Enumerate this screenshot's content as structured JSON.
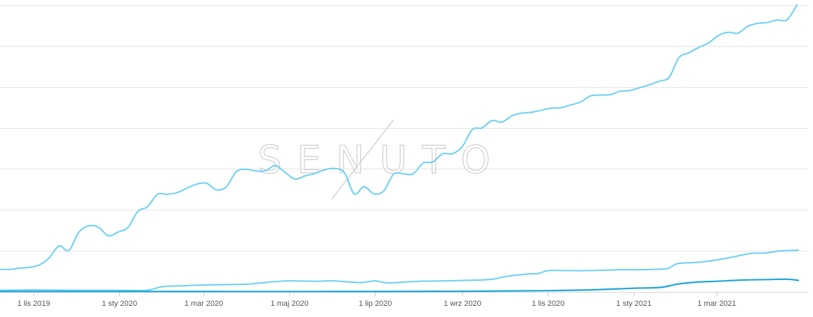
{
  "watermark": "SENUTO",
  "colors": {
    "series_top": "#6ad0f5",
    "series_mid": "#6ad0f5",
    "series_bottom": "#1fa6dc",
    "grid": "#e6e6e6",
    "watermark": "#cfcfcf"
  },
  "chart_data": {
    "type": "line",
    "title": "",
    "xlabel": "",
    "ylabel": "",
    "grid": true,
    "legend": "none",
    "x_ticks": [
      "1 lis 2019",
      "1 sty 2020",
      "1 mar 2020",
      "1 maj 2020",
      "1 lip 2020",
      "1 wrz 2020",
      "1 lis 2020",
      "1 sty 2021",
      "1 mar 2021"
    ],
    "x_tick_dates": [
      "2019-11-01",
      "2020-01-01",
      "2020-03-01",
      "2020-05-01",
      "2020-07-01",
      "2020-09-01",
      "2020-11-01",
      "2021-01-01",
      "2021-03-01"
    ],
    "x_range": [
      "2019-10-08",
      "2021-04-28"
    ],
    "ylim": [
      0,
      7000
    ],
    "y_grid_values": [
      0,
      1000,
      2000,
      3000,
      4000,
      5000,
      6000,
      7000
    ],
    "series": [
      {
        "x": [
          "2019-10-08",
          "2019-10-15",
          "2019-10-22",
          "2019-10-29",
          "2019-11-05",
          "2019-11-12",
          "2019-11-19",
          "2019-11-26",
          "2019-12-03",
          "2019-12-10",
          "2019-12-17",
          "2019-12-24",
          "2019-12-31",
          "2020-01-07",
          "2020-01-14",
          "2020-01-21",
          "2020-01-28",
          "2020-02-04",
          "2020-02-11",
          "2020-02-18",
          "2020-02-25",
          "2020-03-03",
          "2020-03-10",
          "2020-03-17",
          "2020-03-24",
          "2020-03-31",
          "2020-04-07",
          "2020-04-14",
          "2020-04-21",
          "2020-04-28",
          "2020-05-05",
          "2020-05-12",
          "2020-05-19",
          "2020-05-26",
          "2020-06-02",
          "2020-06-09",
          "2020-06-16",
          "2020-06-23",
          "2020-06-30",
          "2020-07-07",
          "2020-07-14",
          "2020-07-21",
          "2020-07-28",
          "2020-08-04",
          "2020-08-11",
          "2020-08-18",
          "2020-08-25",
          "2020-09-01",
          "2020-09-08",
          "2020-09-15",
          "2020-09-22",
          "2020-09-29",
          "2020-10-06",
          "2020-10-13",
          "2020-10-20",
          "2020-10-27",
          "2020-11-03",
          "2020-11-10",
          "2020-11-17",
          "2020-11-24",
          "2020-12-01",
          "2020-12-08",
          "2020-12-15",
          "2020-12-22",
          "2020-12-29",
          "2021-01-05",
          "2021-01-12",
          "2021-01-19",
          "2021-01-26",
          "2021-02-02",
          "2021-02-09",
          "2021-02-16",
          "2021-02-23",
          "2021-03-02",
          "2021-03-09",
          "2021-03-16",
          "2021-03-23",
          "2021-03-30",
          "2021-04-06",
          "2021-04-13",
          "2021-04-20",
          "2021-04-27"
        ],
        "values": [
          550,
          550,
          580,
          600,
          660,
          830,
          1120,
          1010,
          1450,
          1610,
          1580,
          1370,
          1460,
          1570,
          1960,
          2080,
          2380,
          2380,
          2420,
          2530,
          2630,
          2650,
          2490,
          2560,
          2930,
          2990,
          2950,
          2960,
          3080,
          2910,
          2750,
          2830,
          2890,
          2980,
          3010,
          2910,
          2390,
          2570,
          2390,
          2460,
          2870,
          2880,
          2880,
          3140,
          3170,
          3370,
          3370,
          3550,
          3960,
          4000,
          4180,
          4140,
          4290,
          4360,
          4380,
          4430,
          4480,
          4490,
          4560,
          4630,
          4780,
          4800,
          4810,
          4890,
          4910,
          4980,
          5050,
          5140,
          5230,
          5710,
          5830,
          5960,
          6070,
          6250,
          6330,
          6310,
          6480,
          6550,
          6570,
          6630,
          6640,
          7000
        ]
      },
      {
        "x": [
          "2019-10-08",
          "2019-11-01",
          "2019-12-01",
          "2020-01-01",
          "2020-01-20",
          "2020-02-01",
          "2020-02-15",
          "2020-03-01",
          "2020-03-20",
          "2020-04-01",
          "2020-04-20",
          "2020-05-01",
          "2020-05-20",
          "2020-06-01",
          "2020-06-20",
          "2020-07-01",
          "2020-07-10",
          "2020-08-01",
          "2020-08-20",
          "2020-09-01",
          "2020-09-20",
          "2020-10-01",
          "2020-10-15",
          "2020-10-25",
          "2020-11-01",
          "2020-11-15",
          "2020-12-01",
          "2020-12-20",
          "2021-01-01",
          "2021-01-15",
          "2021-01-25",
          "2021-02-01",
          "2021-02-15",
          "2021-03-01",
          "2021-03-15",
          "2021-03-25",
          "2021-04-05",
          "2021-04-15",
          "2021-04-28"
        ],
        "values": [
          40,
          50,
          40,
          40,
          40,
          130,
          150,
          170,
          180,
          190,
          250,
          270,
          260,
          270,
          230,
          270,
          220,
          260,
          270,
          280,
          300,
          370,
          430,
          450,
          520,
          520,
          520,
          540,
          540,
          550,
          570,
          690,
          720,
          780,
          870,
          940,
          950,
          1000,
          1020
        ]
      },
      {
        "x": [
          "2019-10-08",
          "2020-03-01",
          "2020-06-01",
          "2020-09-01",
          "2020-11-01",
          "2020-12-01",
          "2021-01-01",
          "2021-01-20",
          "2021-02-01",
          "2021-02-15",
          "2021-03-01",
          "2021-03-20",
          "2021-04-05",
          "2021-04-20",
          "2021-04-28"
        ],
        "values": [
          10,
          10,
          10,
          15,
          30,
          50,
          90,
          110,
          190,
          240,
          260,
          290,
          300,
          310,
          280
        ]
      }
    ]
  }
}
